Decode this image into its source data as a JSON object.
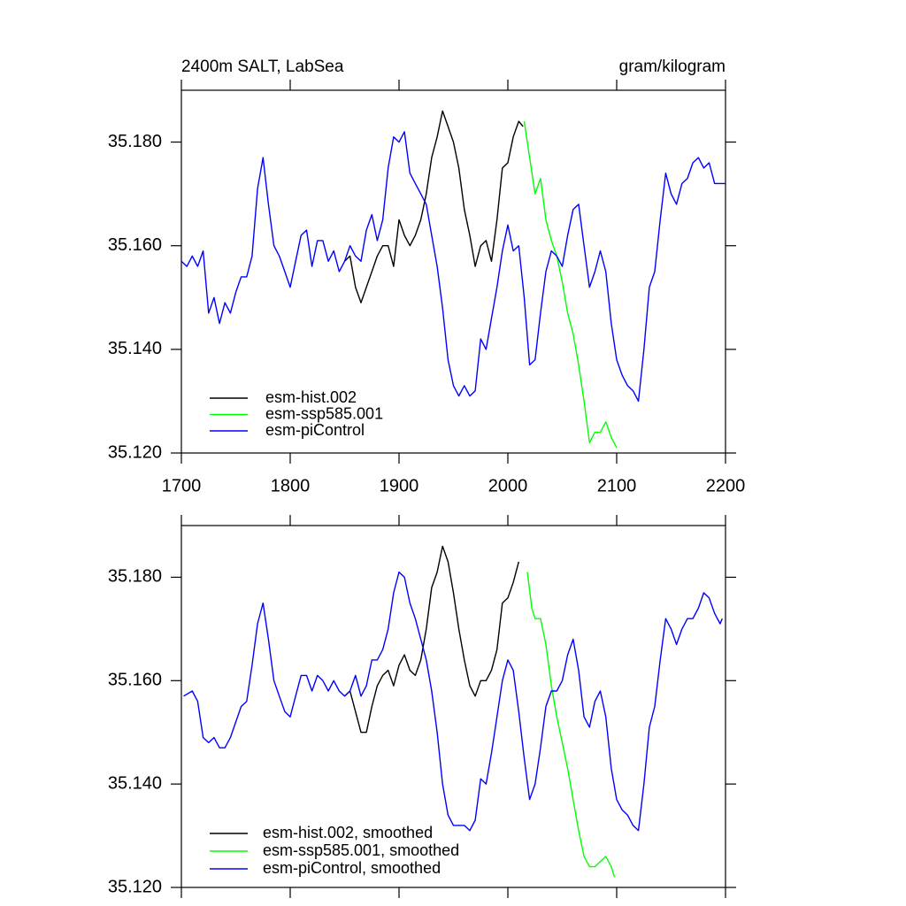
{
  "chart_data": [
    {
      "type": "line",
      "title": "2400m SALT, LabSea",
      "units": "gram/kilogram",
      "xlim": [
        1700,
        2200
      ],
      "xticks": [
        1700,
        1800,
        1900,
        2000,
        2100,
        2200
      ],
      "ylim": [
        35.12,
        35.19
      ],
      "yticks": [
        {
          "value": 35.12,
          "label": "35.120"
        },
        {
          "value": 35.14,
          "label": "35.140"
        },
        {
          "value": 35.16,
          "label": "35.160"
        },
        {
          "value": 35.18,
          "label": "35.180"
        }
      ],
      "legend": "lower left",
      "series": [
        {
          "name": "esm-hist.002",
          "color": "#000000",
          "x": [
            1850,
            1855,
            1860,
            1865,
            1870,
            1875,
            1880,
            1885,
            1890,
            1895,
            1900,
            1905,
            1910,
            1915,
            1920,
            1925,
            1930,
            1935,
            1940,
            1945,
            1950,
            1955,
            1960,
            1965,
            1970,
            1975,
            1980,
            1985,
            1990,
            1995,
            2000,
            2005,
            2010,
            2014
          ],
          "values": [
            35.157,
            35.158,
            35.152,
            35.149,
            35.152,
            35.155,
            35.158,
            35.16,
            35.16,
            35.156,
            35.165,
            35.162,
            35.16,
            35.162,
            35.165,
            35.17,
            35.177,
            35.181,
            35.186,
            35.183,
            35.18,
            35.175,
            35.167,
            35.162,
            35.156,
            35.16,
            35.161,
            35.157,
            35.165,
            35.175,
            35.176,
            35.181,
            35.184,
            35.183
          ]
        },
        {
          "name": "esm-ssp585.001",
          "color": "#00ff00",
          "x": [
            2015,
            2020,
            2025,
            2030,
            2035,
            2040,
            2045,
            2050,
            2055,
            2060,
            2065,
            2070,
            2075,
            2080,
            2085,
            2090,
            2095,
            2100
          ],
          "values": [
            35.184,
            35.177,
            35.17,
            35.173,
            35.165,
            35.161,
            35.158,
            35.153,
            35.147,
            35.143,
            35.137,
            35.13,
            35.122,
            35.124,
            35.124,
            35.126,
            35.123,
            35.121
          ]
        },
        {
          "name": "esm-piControl",
          "color": "#0000ff",
          "x": [
            1700,
            1705,
            1710,
            1715,
            1720,
            1725,
            1730,
            1735,
            1740,
            1745,
            1750,
            1755,
            1760,
            1765,
            1770,
            1775,
            1780,
            1785,
            1790,
            1795,
            1800,
            1805,
            1810,
            1815,
            1820,
            1825,
            1830,
            1835,
            1840,
            1845,
            1850,
            1855,
            1860,
            1865,
            1870,
            1875,
            1880,
            1885,
            1890,
            1895,
            1900,
            1905,
            1910,
            1915,
            1920,
            1925,
            1930,
            1935,
            1940,
            1945,
            1950,
            1955,
            1960,
            1965,
            1970,
            1975,
            1980,
            1985,
            1990,
            1995,
            2000,
            2005,
            2010,
            2015,
            2020,
            2025,
            2030,
            2035,
            2040,
            2045,
            2050,
            2055,
            2060,
            2065,
            2070,
            2075,
            2080,
            2085,
            2090,
            2095,
            2100,
            2105,
            2110,
            2115,
            2120,
            2125,
            2130,
            2135,
            2140,
            2145,
            2150,
            2155,
            2160,
            2165,
            2170,
            2175,
            2180,
            2185,
            2190,
            2195,
            2200
          ],
          "values": [
            35.157,
            35.156,
            35.158,
            35.156,
            35.159,
            35.147,
            35.15,
            35.145,
            35.149,
            35.147,
            35.151,
            35.154,
            35.154,
            35.158,
            35.171,
            35.177,
            35.168,
            35.16,
            35.158,
            35.155,
            35.152,
            35.157,
            35.162,
            35.163,
            35.156,
            35.161,
            35.161,
            35.157,
            35.159,
            35.155,
            35.157,
            35.16,
            35.158,
            35.157,
            35.163,
            35.166,
            35.161,
            35.165,
            35.175,
            35.181,
            35.18,
            35.182,
            35.174,
            35.172,
            35.17,
            35.168,
            35.162,
            35.156,
            35.148,
            35.138,
            35.133,
            35.131,
            35.133,
            35.131,
            35.132,
            35.142,
            35.14,
            35.146,
            35.152,
            35.159,
            35.164,
            35.159,
            35.16,
            35.15,
            35.137,
            35.138,
            35.147,
            35.155,
            35.159,
            35.158,
            35.156,
            35.162,
            35.167,
            35.168,
            35.16,
            35.152,
            35.155,
            35.159,
            35.155,
            35.145,
            35.138,
            35.135,
            35.133,
            35.132,
            35.13,
            35.14,
            35.152,
            35.155,
            35.165,
            35.174,
            35.17,
            35.168,
            35.172,
            35.173,
            35.176,
            35.177,
            35.175,
            35.176,
            35.172,
            35.172,
            35.172
          ]
        }
      ]
    },
    {
      "type": "line",
      "xlim": [
        1700,
        2200
      ],
      "xticks": [
        1700,
        1800,
        1900,
        2000,
        2100,
        2200
      ],
      "ylim": [
        35.12,
        35.19
      ],
      "yticks": [
        {
          "value": 35.12,
          "label": "35.120"
        },
        {
          "value": 35.14,
          "label": "35.140"
        },
        {
          "value": 35.16,
          "label": "35.160"
        },
        {
          "value": 35.18,
          "label": "35.180"
        }
      ],
      "legend": "lower left",
      "series": [
        {
          "name": "esm-hist.002, smoothed",
          "color": "#000000",
          "x": [
            1850,
            1855,
            1860,
            1865,
            1870,
            1875,
            1880,
            1885,
            1890,
            1895,
            1900,
            1905,
            1910,
            1915,
            1920,
            1925,
            1930,
            1935,
            1940,
            1945,
            1950,
            1955,
            1960,
            1965,
            1970,
            1975,
            1980,
            1985,
            1990,
            1995,
            2000,
            2005,
            2010
          ],
          "values": [
            35.157,
            35.158,
            35.154,
            35.15,
            35.15,
            35.155,
            35.159,
            35.161,
            35.162,
            35.159,
            35.163,
            35.165,
            35.162,
            35.161,
            35.164,
            35.17,
            35.178,
            35.181,
            35.186,
            35.183,
            35.177,
            35.17,
            35.164,
            35.159,
            35.157,
            35.16,
            35.16,
            35.162,
            35.166,
            35.175,
            35.176,
            35.179,
            35.183
          ]
        },
        {
          "name": "esm-ssp585.001, smoothed",
          "color": "#00ff00",
          "x": [
            2018,
            2022,
            2025,
            2030,
            2035,
            2040,
            2045,
            2050,
            2055,
            2060,
            2065,
            2070,
            2075,
            2080,
            2085,
            2090,
            2095,
            2098
          ],
          "values": [
            35.181,
            35.174,
            35.172,
            35.172,
            35.167,
            35.159,
            35.153,
            35.148,
            35.143,
            35.137,
            35.131,
            35.126,
            35.124,
            35.124,
            35.125,
            35.126,
            35.124,
            35.122
          ]
        },
        {
          "name": "esm-piControl, smoothed",
          "color": "#0000ff",
          "x": [
            1702,
            1710,
            1715,
            1720,
            1725,
            1730,
            1735,
            1740,
            1745,
            1750,
            1755,
            1760,
            1765,
            1770,
            1775,
            1780,
            1785,
            1790,
            1795,
            1800,
            1805,
            1810,
            1815,
            1820,
            1825,
            1830,
            1835,
            1840,
            1845,
            1850,
            1855,
            1860,
            1865,
            1870,
            1875,
            1880,
            1885,
            1890,
            1895,
            1900,
            1905,
            1910,
            1915,
            1920,
            1925,
            1930,
            1935,
            1940,
            1945,
            1950,
            1955,
            1960,
            1965,
            1970,
            1975,
            1980,
            1985,
            1990,
            1995,
            2000,
            2005,
            2010,
            2015,
            2020,
            2025,
            2030,
            2035,
            2040,
            2045,
            2050,
            2055,
            2060,
            2065,
            2070,
            2075,
            2080,
            2085,
            2090,
            2095,
            2100,
            2105,
            2110,
            2115,
            2120,
            2125,
            2130,
            2135,
            2140,
            2145,
            2150,
            2155,
            2160,
            2165,
            2170,
            2175,
            2180,
            2185,
            2190,
            2195,
            2197
          ],
          "values": [
            35.157,
            35.158,
            35.156,
            35.149,
            35.148,
            35.149,
            35.147,
            35.147,
            35.149,
            35.152,
            35.155,
            35.156,
            35.163,
            35.171,
            35.175,
            35.168,
            35.16,
            35.157,
            35.154,
            35.153,
            35.157,
            35.161,
            35.161,
            35.158,
            35.161,
            35.16,
            35.158,
            35.16,
            35.158,
            35.157,
            35.158,
            35.161,
            35.157,
            35.159,
            35.164,
            35.164,
            35.166,
            35.17,
            35.177,
            35.181,
            35.18,
            35.175,
            35.172,
            35.168,
            35.164,
            35.158,
            35.15,
            35.14,
            35.134,
            35.132,
            35.132,
            35.132,
            35.131,
            35.133,
            35.141,
            35.14,
            35.146,
            35.153,
            35.16,
            35.164,
            35.162,
            35.154,
            35.145,
            35.137,
            35.14,
            35.147,
            35.155,
            35.158,
            35.158,
            35.16,
            35.165,
            35.168,
            35.162,
            35.153,
            35.151,
            35.156,
            35.158,
            35.153,
            35.143,
            35.137,
            35.135,
            35.134,
            35.132,
            35.131,
            35.14,
            35.151,
            35.155,
            35.164,
            35.172,
            35.17,
            35.167,
            35.17,
            35.172,
            35.172,
            35.174,
            35.177,
            35.176,
            35.173,
            35.171,
            35.172
          ]
        }
      ]
    }
  ]
}
